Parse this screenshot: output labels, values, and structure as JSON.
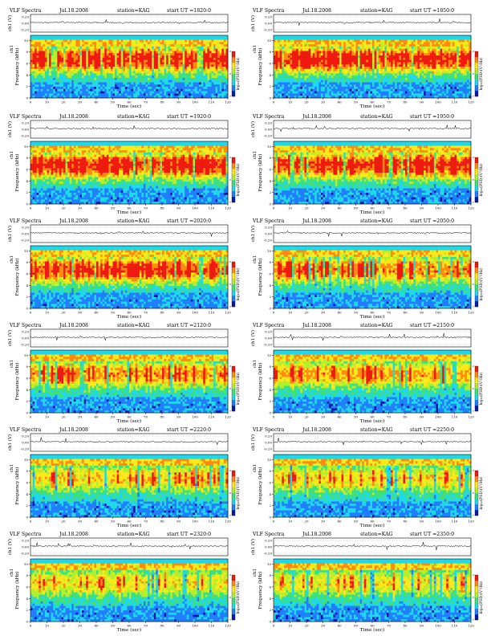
{
  "chart_data": [
    {
      "type": "heatmap",
      "title": {
        "label": "VLF Spectra",
        "date": "Jul.18.2008",
        "station": "station=KAG",
        "start": "start  UT  =1820:0"
      },
      "ch_label": "ch1 (V)",
      "ch_ticks": [
        "0.20",
        "0.00",
        "-0.20"
      ],
      "freq_label": "Frequency  (kHz)",
      "ch_side": "ch1",
      "freq_ticks": [
        "0",
        "2",
        "4",
        "6",
        "8",
        "10"
      ],
      "time_label": "Time  (sec)",
      "time_ticks": [
        "0",
        "10",
        "20",
        "30",
        "40",
        "50",
        "60",
        "70",
        "80",
        "90",
        "100",
        "110",
        "120"
      ],
      "colorbar_label": "log₁₀(PSD)(V²/Hz)",
      "colorbar_ticks": [
        "-3",
        "-5",
        "-7"
      ],
      "xlim": [
        0,
        120
      ],
      "ylim_khz": [
        0,
        10
      ],
      "activity": 0.85,
      "seed": 11
    },
    {
      "type": "heatmap",
      "title": {
        "label": "VLF Spectra",
        "date": "Jul.18.2008",
        "station": "station=KAG",
        "start": "start  UT  =1850:0"
      },
      "ch_label": "ch1 (V)",
      "ch_ticks": [
        "0.20",
        "0.00",
        "-0.20"
      ],
      "freq_label": "Frequency  (kHz)",
      "ch_side": "ch1",
      "freq_ticks": [
        "0",
        "2",
        "4",
        "6",
        "8",
        "10"
      ],
      "time_label": "Time  (sec)",
      "time_ticks": [
        "0",
        "10",
        "20",
        "30",
        "40",
        "50",
        "60",
        "70",
        "80",
        "90",
        "100",
        "110",
        "120"
      ],
      "colorbar_label": "log₁₀(PSD)(V²/Hz)",
      "colorbar_ticks": [
        "-3",
        "-5",
        "-7"
      ],
      "xlim": [
        0,
        120
      ],
      "ylim_khz": [
        0,
        10
      ],
      "activity": 0.85,
      "seed": 23
    },
    {
      "type": "heatmap",
      "title": {
        "label": "VLF Spectra",
        "date": "Jul.18.2008",
        "station": "station=KAG",
        "start": "start  UT  =1920:0"
      },
      "ch_label": "ch1 (V)",
      "ch_ticks": [
        "0.20",
        "0.00",
        "-0.20"
      ],
      "freq_label": "Frequency  (kHz)",
      "ch_side": "ch1",
      "freq_ticks": [
        "0",
        "2",
        "4",
        "6",
        "8",
        "10"
      ],
      "time_label": "Time  (sec)",
      "time_ticks": [
        "0",
        "10",
        "20",
        "30",
        "40",
        "50",
        "60",
        "70",
        "80",
        "90",
        "100",
        "110",
        "120"
      ],
      "colorbar_label": "log₁₀(PSD)(V²/Hz)",
      "colorbar_ticks": [
        "-3",
        "-5",
        "-7"
      ],
      "xlim": [
        0,
        120
      ],
      "ylim_khz": [
        0,
        10
      ],
      "activity": 0.8,
      "seed": 37
    },
    {
      "type": "heatmap",
      "title": {
        "label": "VLF Spectra",
        "date": "Jul.18.2008",
        "station": "station=KAG",
        "start": "start  UT  =1950:0"
      },
      "ch_label": "ch1 (V)",
      "ch_ticks": [
        "0.20",
        "0.00",
        "-0.20"
      ],
      "freq_label": "Frequency  (kHz)",
      "ch_side": "ch1",
      "freq_ticks": [
        "0",
        "2",
        "4",
        "6",
        "8",
        "10"
      ],
      "time_label": "Time  (sec)",
      "time_ticks": [
        "0",
        "10",
        "20",
        "30",
        "40",
        "50",
        "60",
        "70",
        "80",
        "90",
        "100",
        "110",
        "120"
      ],
      "colorbar_label": "log₁₀(PSD)(V²/Hz)",
      "colorbar_ticks": [
        "-3",
        "-5",
        "-7"
      ],
      "xlim": [
        0,
        120
      ],
      "ylim_khz": [
        0,
        10
      ],
      "activity": 0.78,
      "seed": 41
    },
    {
      "type": "heatmap",
      "title": {
        "label": "VLF Spectra",
        "date": "Jul.18.2008",
        "station": "station=KAG",
        "start": "start  UT  =2020:0"
      },
      "ch_label": "ch1 (V)",
      "ch_ticks": [
        "0.20",
        "0.00",
        "-0.20"
      ],
      "freq_label": "Frequency  (kHz)",
      "ch_side": "ch1",
      "freq_ticks": [
        "0",
        "2",
        "4",
        "6",
        "8",
        "10"
      ],
      "time_label": "Time  (sec)",
      "time_ticks": [
        "0",
        "10",
        "20",
        "30",
        "40",
        "50",
        "60",
        "70",
        "80",
        "90",
        "100",
        "110",
        "120"
      ],
      "colorbar_label": "log₁₀(PSD)(V²/Hz)",
      "colorbar_ticks": [
        "-3",
        "-5",
        "-7"
      ],
      "xlim": [
        0,
        120
      ],
      "ylim_khz": [
        0,
        10
      ],
      "activity": 0.72,
      "seed": 53
    },
    {
      "type": "heatmap",
      "title": {
        "label": "VLF Spectra",
        "date": "Jul.18.2008",
        "station": "station=KAG",
        "start": "start  UT  =2050:0"
      },
      "ch_label": "ch1 (V)",
      "ch_ticks": [
        "0.20",
        "0.00",
        "-0.20"
      ],
      "freq_label": "Frequency  (kHz)",
      "ch_side": "ch1",
      "freq_ticks": [
        "0",
        "2",
        "4",
        "6",
        "8",
        "10"
      ],
      "time_label": "Time  (sec)",
      "time_ticks": [
        "0",
        "10",
        "20",
        "30",
        "40",
        "50",
        "60",
        "70",
        "80",
        "90",
        "100",
        "110",
        "120"
      ],
      "colorbar_label": "log₁₀(PSD)(V²/Hz)",
      "colorbar_ticks": [
        "-3",
        "-5",
        "-7"
      ],
      "xlim": [
        0,
        120
      ],
      "ylim_khz": [
        0,
        10
      ],
      "activity": 0.6,
      "seed": 67
    },
    {
      "type": "heatmap",
      "title": {
        "label": "VLF Spectra",
        "date": "Jul.18.2008",
        "station": "station=KAG",
        "start": "start  UT  =2120:0"
      },
      "ch_label": "ch1 (V)",
      "ch_ticks": [
        "0.20",
        "0.00",
        "-0.20"
      ],
      "freq_label": "Frequency  (kHz)",
      "ch_side": "ch1",
      "freq_ticks": [
        "0",
        "2",
        "4",
        "6",
        "8",
        "10"
      ],
      "time_label": "Time  (sec)",
      "time_ticks": [
        "0",
        "10",
        "20",
        "30",
        "40",
        "50",
        "60",
        "70",
        "80",
        "90",
        "100",
        "110",
        "120"
      ],
      "colorbar_label": "log₁₀(PSD)(V²/Hz)",
      "colorbar_ticks": [
        "-3",
        "-5",
        "-7"
      ],
      "xlim": [
        0,
        120
      ],
      "ylim_khz": [
        0,
        10
      ],
      "activity": 0.55,
      "seed": 71
    },
    {
      "type": "heatmap",
      "title": {
        "label": "VLF Spectra",
        "date": "Jul.18.2008",
        "station": "station=KAG",
        "start": "start  UT  =2150:0"
      },
      "ch_label": "ch1 (V)",
      "ch_ticks": [
        "0.20",
        "0.00",
        "-0.20"
      ],
      "freq_label": "Frequency  (kHz)",
      "ch_side": "ch1",
      "freq_ticks": [
        "0",
        "2",
        "4",
        "6",
        "8",
        "10"
      ],
      "time_label": "Time  (sec)",
      "time_ticks": [
        "0",
        "10",
        "20",
        "30",
        "40",
        "50",
        "60",
        "70",
        "80",
        "90",
        "100",
        "110",
        "120"
      ],
      "colorbar_label": "log₁₀(PSD)(V²/Hz)",
      "colorbar_ticks": [
        "-3",
        "-5",
        "-7"
      ],
      "xlim": [
        0,
        120
      ],
      "ylim_khz": [
        0,
        10
      ],
      "activity": 0.5,
      "seed": 83
    },
    {
      "type": "heatmap",
      "title": {
        "label": "VLF Spectra",
        "date": "Jul.18.2008",
        "station": "station=KAG",
        "start": "start  UT  =2220:0"
      },
      "ch_label": "ch1 (V)",
      "ch_ticks": [
        "0.20",
        "0.00",
        "-0.20"
      ],
      "freq_label": "Frequency  (kHz)",
      "ch_side": "ch1",
      "freq_ticks": [
        "0",
        "2",
        "4",
        "6",
        "8",
        "10"
      ],
      "time_label": "Time  (sec)",
      "time_ticks": [
        "0",
        "10",
        "20",
        "30",
        "40",
        "50",
        "60",
        "70",
        "80",
        "90",
        "100",
        "110",
        "120"
      ],
      "colorbar_label": "log₁₀(PSD)(V²/Hz)",
      "colorbar_ticks": [
        "-3",
        "-5",
        "-7"
      ],
      "xlim": [
        0,
        120
      ],
      "ylim_khz": [
        0,
        10
      ],
      "activity": 0.35,
      "seed": 97
    },
    {
      "type": "heatmap",
      "title": {
        "label": "VLF Spectra",
        "date": "Jul.18.2008",
        "station": "station=KAG",
        "start": "start  UT  =2250:0"
      },
      "ch_label": "ch1 (V)",
      "ch_ticks": [
        "0.20",
        "0.00",
        "-0.20"
      ],
      "freq_label": "Frequency  (kHz)",
      "ch_side": "ch1",
      "freq_ticks": [
        "0",
        "2",
        "4",
        "6",
        "8",
        "10"
      ],
      "time_label": "Time  (sec)",
      "time_ticks": [
        "0",
        "10",
        "20",
        "30",
        "40",
        "50",
        "60",
        "70",
        "80",
        "90",
        "100",
        "110",
        "120"
      ],
      "colorbar_label": "log₁₀(PSD)(V²/Hz)",
      "colorbar_ticks": [
        "-3",
        "-5",
        "-7"
      ],
      "xlim": [
        0,
        120
      ],
      "ylim_khz": [
        0,
        10
      ],
      "activity": 0.32,
      "seed": 101
    },
    {
      "type": "heatmap",
      "title": {
        "label": "VLF Spectra",
        "date": "Jul.18.2008",
        "station": "station=KAG",
        "start": "start  UT  =2320:0"
      },
      "ch_label": "ch1 (V)",
      "ch_ticks": [
        "0.20",
        "0.00",
        "-0.20"
      ],
      "freq_label": "Frequency  (kHz)",
      "ch_side": "ch1",
      "freq_ticks": [
        "0",
        "2",
        "4",
        "6",
        "8",
        "10"
      ],
      "time_label": "Time  (sec)",
      "time_ticks": [
        "0",
        "10",
        "20",
        "30",
        "40",
        "50",
        "60",
        "70",
        "80",
        "90",
        "100",
        "110",
        "120"
      ],
      "colorbar_label": "log₁₀(PSD)(V²/Hz)",
      "colorbar_ticks": [
        "-3",
        "-5",
        "-7"
      ],
      "xlim": [
        0,
        120
      ],
      "ylim_khz": [
        0,
        10
      ],
      "activity": 0.3,
      "seed": 113
    },
    {
      "type": "heatmap",
      "title": {
        "label": "VLF Spectra",
        "date": "Jul.18.2008",
        "station": "station=KAG",
        "start": "start  UT  =2350:0"
      },
      "ch_label": "ch1 (V)",
      "ch_ticks": [
        "0.20",
        "0.00",
        "-0.20"
      ],
      "freq_label": "Frequency  (kHz)",
      "ch_side": "ch1",
      "freq_ticks": [
        "0",
        "2",
        "4",
        "6",
        "8",
        "10"
      ],
      "time_label": "Time  (sec)",
      "time_ticks": [
        "0",
        "10",
        "20",
        "30",
        "40",
        "50",
        "60",
        "70",
        "80",
        "90",
        "100",
        "110",
        "120"
      ],
      "colorbar_label": "log₁₀(PSD)(V²/Hz)",
      "colorbar_ticks": [
        "-3",
        "-5",
        "-7"
      ],
      "xlim": [
        0,
        120
      ],
      "ylim_khz": [
        0,
        10
      ],
      "activity": 0.28,
      "seed": 127
    }
  ],
  "colors": {
    "colormap": [
      "#0a1aa8",
      "#1f7fff",
      "#20d8e8",
      "#3fe07a",
      "#b5ee2a",
      "#ffe81a",
      "#ff8a10",
      "#ee1a10",
      "#ffffff"
    ],
    "trace": "#000000"
  }
}
